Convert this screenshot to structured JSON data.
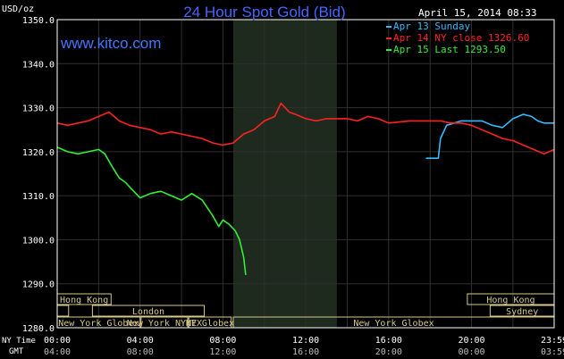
{
  "header": {
    "unit": "USD/oz",
    "title": "24 Hour Spot Gold (Bid)",
    "date": "April 15, 2014 08:33",
    "watermark": "www.kitco.com"
  },
  "legend": [
    {
      "text": "Apr 13 Sunday",
      "color": "#33bbff"
    },
    {
      "text": "Apr 14 NY close 1326.60",
      "color": "#ff2222"
    },
    {
      "text": "Apr 15 Last 1293.50",
      "color": "#33ee33"
    }
  ],
  "time_labels": {
    "ny_title": "NY Time",
    "gmt_title": "GMT",
    "ny": [
      "00:00",
      "04:00",
      "08:00",
      "12:00",
      "16:00",
      "20:00",
      "23:59"
    ],
    "gmt": [
      "04:00",
      "08:00",
      "12:00",
      "16:00",
      "20:00",
      "00:00",
      "03:59"
    ]
  },
  "sessions": {
    "row1": [
      {
        "label": "Hong Kong",
        "start": 0,
        "end": 2.6
      },
      {
        "label": "Hong Kong",
        "start": 19.8,
        "end": 23.99
      }
    ],
    "row2": [
      {
        "label": "",
        "start": 0,
        "end": 0.55
      },
      {
        "label": "London",
        "start": 1.7,
        "end": 7.1
      },
      {
        "label": "Sydney",
        "start": 20.9,
        "end": 23.99
      }
    ],
    "row3": [
      {
        "label": "New York Globex",
        "start": 0,
        "end": 4.0
      },
      {
        "label": "New York NYMEX",
        "start": 4.05,
        "end": 6.3
      },
      {
        "label": "NY Globex",
        "start": 6.35,
        "end": 8.4
      },
      {
        "label": "New York Globex",
        "start": 8.5,
        "end": 23.99
      }
    ]
  },
  "chart_data": {
    "type": "line",
    "title": "24 Hour Spot Gold (Bid)",
    "ylabel": "USD/oz",
    "ylim": [
      1280,
      1350
    ],
    "xlim": [
      0,
      23.99
    ],
    "yticks": [
      "1280.0",
      "1290.0",
      "1300.0",
      "1310.0",
      "1320.0",
      "1330.0",
      "1340.0",
      "1350.0"
    ],
    "highlight_band": [
      8.5,
      13.5
    ],
    "series": [
      {
        "name": "Apr 13 Sunday",
        "color": "#33bbff",
        "points": [
          [
            17.8,
            1318.5
          ],
          [
            18.4,
            1318.5
          ],
          [
            18.5,
            1323
          ],
          [
            18.8,
            1326
          ],
          [
            19.5,
            1327
          ],
          [
            20.5,
            1327
          ],
          [
            21.0,
            1326
          ],
          [
            21.5,
            1325.5
          ],
          [
            22.0,
            1327.5
          ],
          [
            22.5,
            1328.5
          ],
          [
            22.9,
            1328
          ],
          [
            23.2,
            1327
          ],
          [
            23.5,
            1326.5
          ],
          [
            23.99,
            1326.5
          ]
        ]
      },
      {
        "name": "Apr 14 NY close 1326.60",
        "color": "#ff2222",
        "points": [
          [
            0,
            1326.5
          ],
          [
            0.5,
            1326
          ],
          [
            1.0,
            1326.5
          ],
          [
            1.5,
            1327
          ],
          [
            2.0,
            1328
          ],
          [
            2.5,
            1329
          ],
          [
            3.0,
            1327
          ],
          [
            3.5,
            1326
          ],
          [
            4.0,
            1325.5
          ],
          [
            4.5,
            1325
          ],
          [
            5.0,
            1324
          ],
          [
            5.5,
            1324.5
          ],
          [
            6.0,
            1324
          ],
          [
            6.5,
            1323.5
          ],
          [
            7.0,
            1323
          ],
          [
            7.5,
            1322
          ],
          [
            8.0,
            1321.5
          ],
          [
            8.5,
            1322
          ],
          [
            9.0,
            1324
          ],
          [
            9.5,
            1325
          ],
          [
            10.0,
            1327
          ],
          [
            10.5,
            1328
          ],
          [
            10.8,
            1331
          ],
          [
            11.2,
            1329
          ],
          [
            11.5,
            1328.5
          ],
          [
            12.0,
            1327.5
          ],
          [
            12.5,
            1327
          ],
          [
            13.0,
            1327.5
          ],
          [
            14.0,
            1327.5
          ],
          [
            14.5,
            1327
          ],
          [
            15.0,
            1328
          ],
          [
            15.5,
            1327.5
          ],
          [
            16.0,
            1326.5
          ],
          [
            17.0,
            1327
          ],
          [
            18.0,
            1327
          ],
          [
            18.5,
            1327
          ],
          [
            19.0,
            1326.5
          ],
          [
            19.5,
            1326.5
          ],
          [
            20.0,
            1326
          ],
          [
            20.5,
            1325
          ],
          [
            21.0,
            1324
          ],
          [
            21.5,
            1323
          ],
          [
            22.0,
            1322.5
          ],
          [
            22.5,
            1321.5
          ],
          [
            23.0,
            1320.5
          ],
          [
            23.5,
            1319.5
          ],
          [
            23.99,
            1320.5
          ]
        ]
      },
      {
        "name": "Apr 15 Last 1293.50",
        "color": "#33ee33",
        "points": [
          [
            0,
            1321
          ],
          [
            0.5,
            1320
          ],
          [
            1.0,
            1319.5
          ],
          [
            1.5,
            1320
          ],
          [
            2.0,
            1320.5
          ],
          [
            2.3,
            1319.5
          ],
          [
            2.6,
            1317
          ],
          [
            3.0,
            1314
          ],
          [
            3.3,
            1313
          ],
          [
            3.6,
            1311.5
          ],
          [
            4.0,
            1309.5
          ],
          [
            4.5,
            1310.5
          ],
          [
            5.0,
            1311
          ],
          [
            5.5,
            1310
          ],
          [
            6.0,
            1309
          ],
          [
            6.5,
            1310.5
          ],
          [
            7.0,
            1309
          ],
          [
            7.5,
            1305.5
          ],
          [
            7.8,
            1303
          ],
          [
            8.0,
            1304.5
          ],
          [
            8.3,
            1303.5
          ],
          [
            8.6,
            1302
          ],
          [
            8.8,
            1300
          ],
          [
            9.0,
            1296
          ],
          [
            9.1,
            1292
          ]
        ]
      }
    ]
  }
}
